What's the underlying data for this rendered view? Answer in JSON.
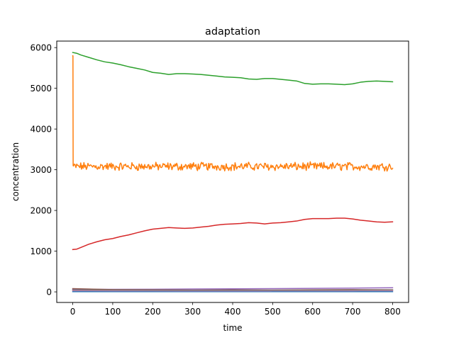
{
  "chart_data": {
    "type": "line",
    "title": "adaptation",
    "xlabel": "time",
    "ylabel": "concentration",
    "xlim": [
      -40,
      840
    ],
    "ylim": [
      -260,
      6160
    ],
    "xticks": [
      0,
      100,
      200,
      300,
      400,
      500,
      600,
      700,
      800
    ],
    "yticks": [
      0,
      1000,
      2000,
      3000,
      4000,
      5000,
      6000
    ],
    "grid": false,
    "legend": "none",
    "series": [
      {
        "color": "#1f77b4",
        "x": [
          0,
          100,
          200,
          300,
          400,
          500,
          600,
          700,
          800
        ],
        "y": [
          5,
          5,
          5,
          5,
          5,
          5,
          5,
          5,
          5
        ]
      },
      {
        "color": "#ff7f0e",
        "noise": 120,
        "x": [
          0,
          0.5,
          1,
          2,
          800
        ],
        "y": [
          5800,
          5800,
          3100,
          3080,
          3080
        ]
      },
      {
        "color": "#2ca02c",
        "x": [
          0,
          10,
          20,
          40,
          60,
          80,
          100,
          120,
          140,
          160,
          180,
          200,
          220,
          240,
          260,
          280,
          300,
          320,
          340,
          360,
          380,
          400,
          420,
          440,
          460,
          480,
          500,
          520,
          540,
          560,
          580,
          600,
          620,
          640,
          660,
          680,
          700,
          720,
          740,
          760,
          780,
          800
        ],
        "y": [
          5880,
          5860,
          5820,
          5760,
          5700,
          5650,
          5620,
          5580,
          5530,
          5490,
          5450,
          5390,
          5370,
          5340,
          5360,
          5360,
          5350,
          5340,
          5320,
          5300,
          5280,
          5270,
          5260,
          5230,
          5220,
          5240,
          5240,
          5220,
          5200,
          5180,
          5120,
          5100,
          5110,
          5110,
          5100,
          5090,
          5110,
          5150,
          5170,
          5180,
          5170,
          5160
        ]
      },
      {
        "color": "#d62728",
        "x": [
          0,
          10,
          20,
          40,
          60,
          80,
          100,
          120,
          140,
          160,
          180,
          200,
          220,
          240,
          260,
          280,
          300,
          320,
          340,
          360,
          380,
          400,
          420,
          440,
          460,
          480,
          500,
          520,
          540,
          560,
          580,
          600,
          620,
          640,
          660,
          680,
          700,
          720,
          740,
          760,
          780,
          800
        ],
        "y": [
          1040,
          1050,
          1090,
          1170,
          1230,
          1280,
          1310,
          1360,
          1400,
          1450,
          1500,
          1540,
          1560,
          1580,
          1570,
          1560,
          1570,
          1590,
          1610,
          1640,
          1660,
          1670,
          1680,
          1700,
          1690,
          1670,
          1690,
          1700,
          1720,
          1740,
          1780,
          1800,
          1800,
          1800,
          1810,
          1810,
          1790,
          1760,
          1740,
          1720,
          1710,
          1720
        ]
      },
      {
        "color": "#9467bd",
        "x": [
          0,
          100,
          200,
          300,
          400,
          500,
          600,
          700,
          800
        ],
        "y": [
          60,
          62,
          65,
          70,
          75,
          80,
          85,
          92,
          100
        ]
      },
      {
        "color": "#8c564b",
        "x": [
          0,
          100,
          200,
          300,
          400,
          500,
          600,
          700,
          800
        ],
        "y": [
          80,
          55,
          50,
          45,
          48,
          45,
          50,
          55,
          50
        ]
      },
      {
        "color": "#e377c2",
        "x": [
          0,
          100,
          200,
          300,
          400,
          500,
          600,
          700,
          800
        ],
        "y": [
          30,
          28,
          26,
          25,
          25,
          26,
          27,
          28,
          30
        ]
      },
      {
        "color": "#7f7f7f",
        "x": [
          0,
          100,
          200,
          300,
          400,
          500,
          600,
          700,
          800
        ],
        "y": [
          45,
          40,
          38,
          36,
          35,
          36,
          38,
          40,
          42
        ]
      }
    ]
  }
}
